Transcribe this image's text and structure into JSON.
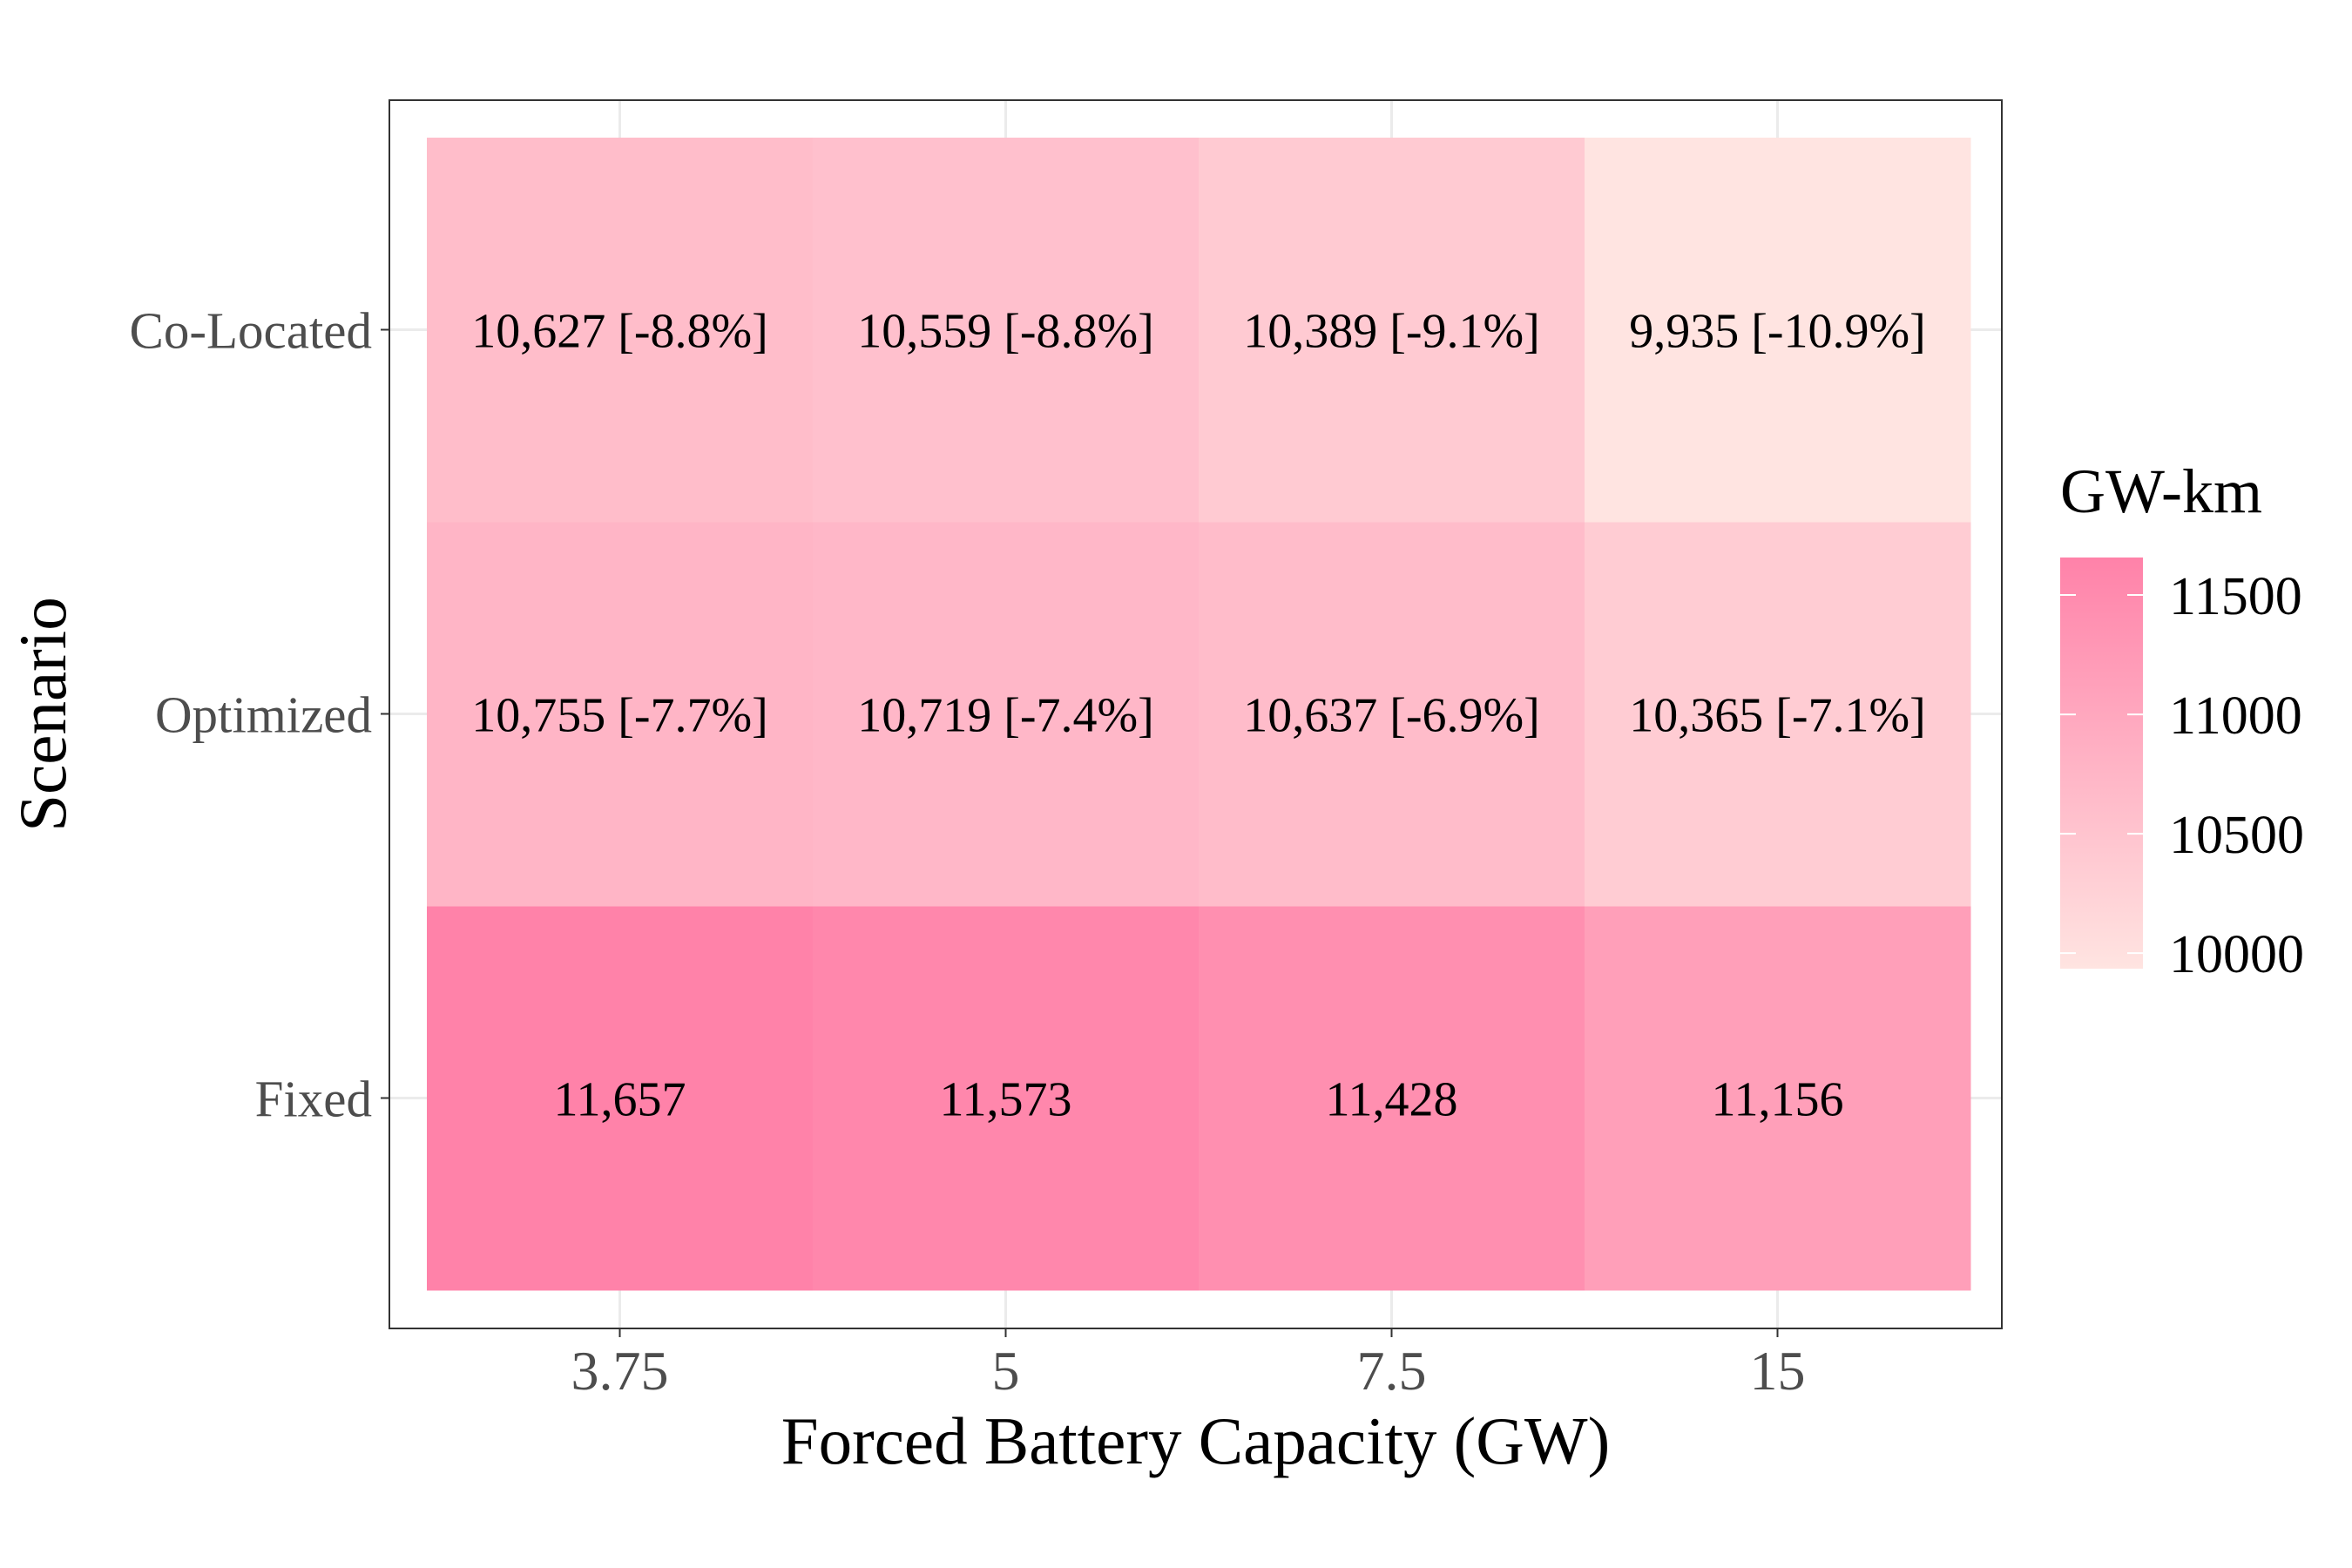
{
  "chart_data": {
    "type": "heatmap",
    "title": "",
    "xlabel": "Forced Battery Capacity (GW)",
    "ylabel": "Scenario",
    "x_categories": [
      "3.75",
      "5",
      "7.5",
      "15"
    ],
    "y_categories": [
      "Fixed",
      "Optimized",
      "Co-Located"
    ],
    "values": {
      "Fixed": [
        11657,
        11573,
        11428,
        11156
      ],
      "Optimized": [
        10755,
        10719,
        10637,
        10365
      ],
      "Co-Located": [
        10627,
        10559,
        10389,
        9935
      ]
    },
    "cell_labels": {
      "Fixed": [
        "11,657",
        "11,573",
        "11,428",
        "11,156"
      ],
      "Optimized": [
        "10,755 [-7.7%]",
        "10,719 [-7.4%]",
        "10,637 [-6.9%]",
        "10,365 [-7.1%]"
      ],
      "Co-Located": [
        "10,627 [-8.8%]",
        "10,559 [-8.8%]",
        "10,389 [-9.1%]",
        "9,935 [-10.9%]"
      ]
    },
    "legend": {
      "title": "GW-km",
      "position": "right",
      "ticks": [
        "11500",
        "11000",
        "10500",
        "10000"
      ],
      "tick_values": [
        11500,
        11000,
        10500,
        10000
      ],
      "range": [
        9935,
        11657
      ],
      "low_color": "#FFE4E1",
      "high_color": "#FF82A9"
    },
    "grid": true,
    "theme": "bw"
  }
}
